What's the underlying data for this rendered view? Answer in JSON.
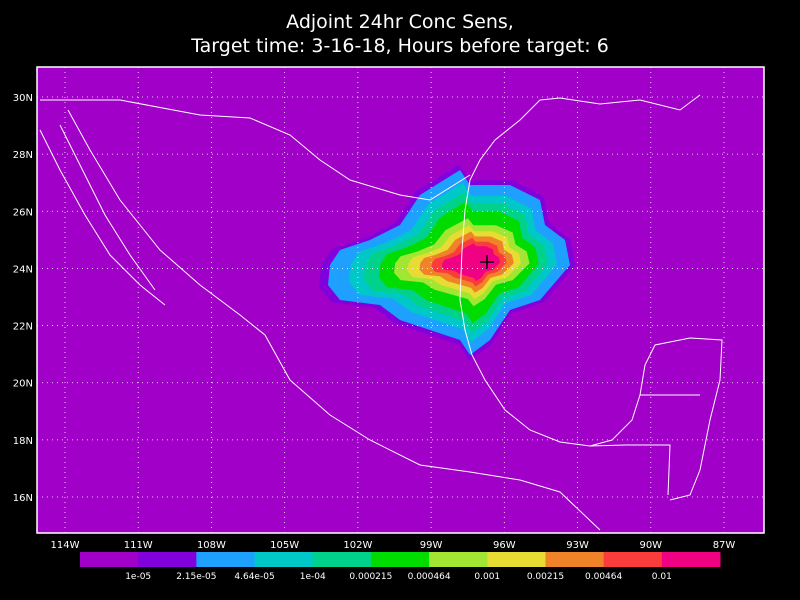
{
  "title": [
    "Adjoint 24hr Conc Sens,",
    "Target time: 3-16-18, Hours before target: 6"
  ],
  "lon_ticks": [
    "114W",
    "111W",
    "108W",
    "105W",
    "102W",
    "99W",
    "96W",
    "93W",
    "90W",
    "87W"
  ],
  "lat_ticks": [
    "30N",
    "28N",
    "26N",
    "24N",
    "22N",
    "20N",
    "18N",
    "16N"
  ],
  "colorbar": {
    "colors": [
      "#a000c8",
      "#8200dc",
      "#1ea0ff",
      "#00c8c8",
      "#00d28c",
      "#00dc00",
      "#a0e632",
      "#e6dc32",
      "#f08228",
      "#fa3c3c",
      "#f00082"
    ],
    "labels": [
      "1e-05",
      "2.15e-05",
      "4.64e-05",
      "1e-04",
      "0.000215",
      "0.000464",
      "0.001",
      "0.00215",
      "0.00464",
      "0.01"
    ]
  }
}
